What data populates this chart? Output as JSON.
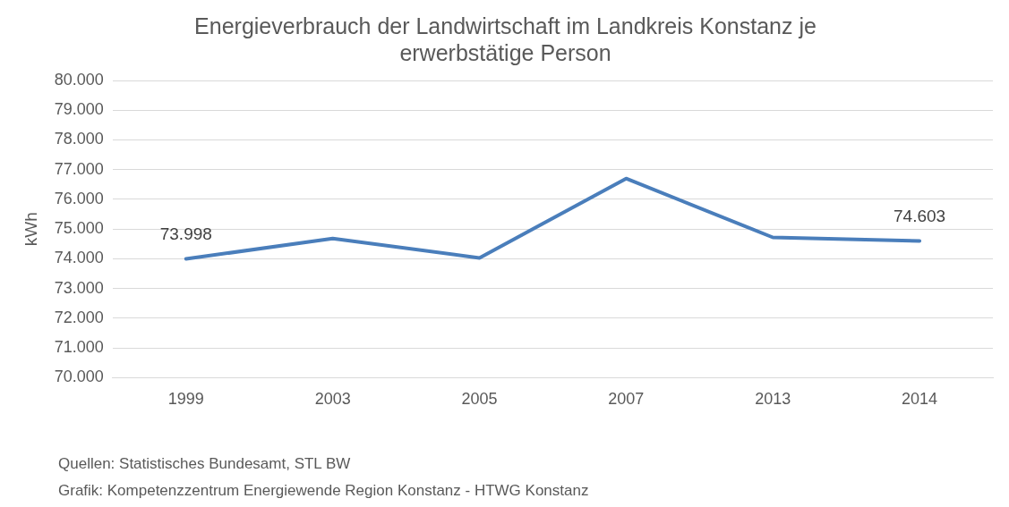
{
  "chart_data": {
    "type": "line",
    "title": "Energieverbrauch der Landwirtschaft im Landkreis Konstanz je erwerbstätige Person",
    "ylabel": "kWh",
    "categories": [
      "1999",
      "2003",
      "2005",
      "2007",
      "2013",
      "2014"
    ],
    "series": [
      {
        "color": "#4a7ebb",
        "values": [
          73998,
          74680,
          74030,
          76700,
          74720,
          74603
        ],
        "value_labels": [
          "73.998",
          null,
          null,
          null,
          null,
          "74.603"
        ]
      }
    ],
    "ylim": [
      70000,
      80000
    ],
    "yticks": [
      {
        "value": 70000,
        "label": "70.000"
      },
      {
        "value": 71000,
        "label": "71.000"
      },
      {
        "value": 72000,
        "label": "72.000"
      },
      {
        "value": 73000,
        "label": "73.000"
      },
      {
        "value": 74000,
        "label": "74.000"
      },
      {
        "value": 75000,
        "label": "75.000"
      },
      {
        "value": 76000,
        "label": "76.000"
      },
      {
        "value": 77000,
        "label": "77.000"
      },
      {
        "value": 78000,
        "label": "78.000"
      },
      {
        "value": 79000,
        "label": "79.000"
      },
      {
        "value": 80000,
        "label": "80.000"
      }
    ],
    "grid": "y",
    "legend": false,
    "marker": "none",
    "line_style": "solid",
    "annotations": [
      "Quellen: Statistisches Bundesamt, STL BW",
      "Grafik: Kompetenzzentrum Energiewende Region Konstanz - HTWG Konstanz"
    ]
  }
}
